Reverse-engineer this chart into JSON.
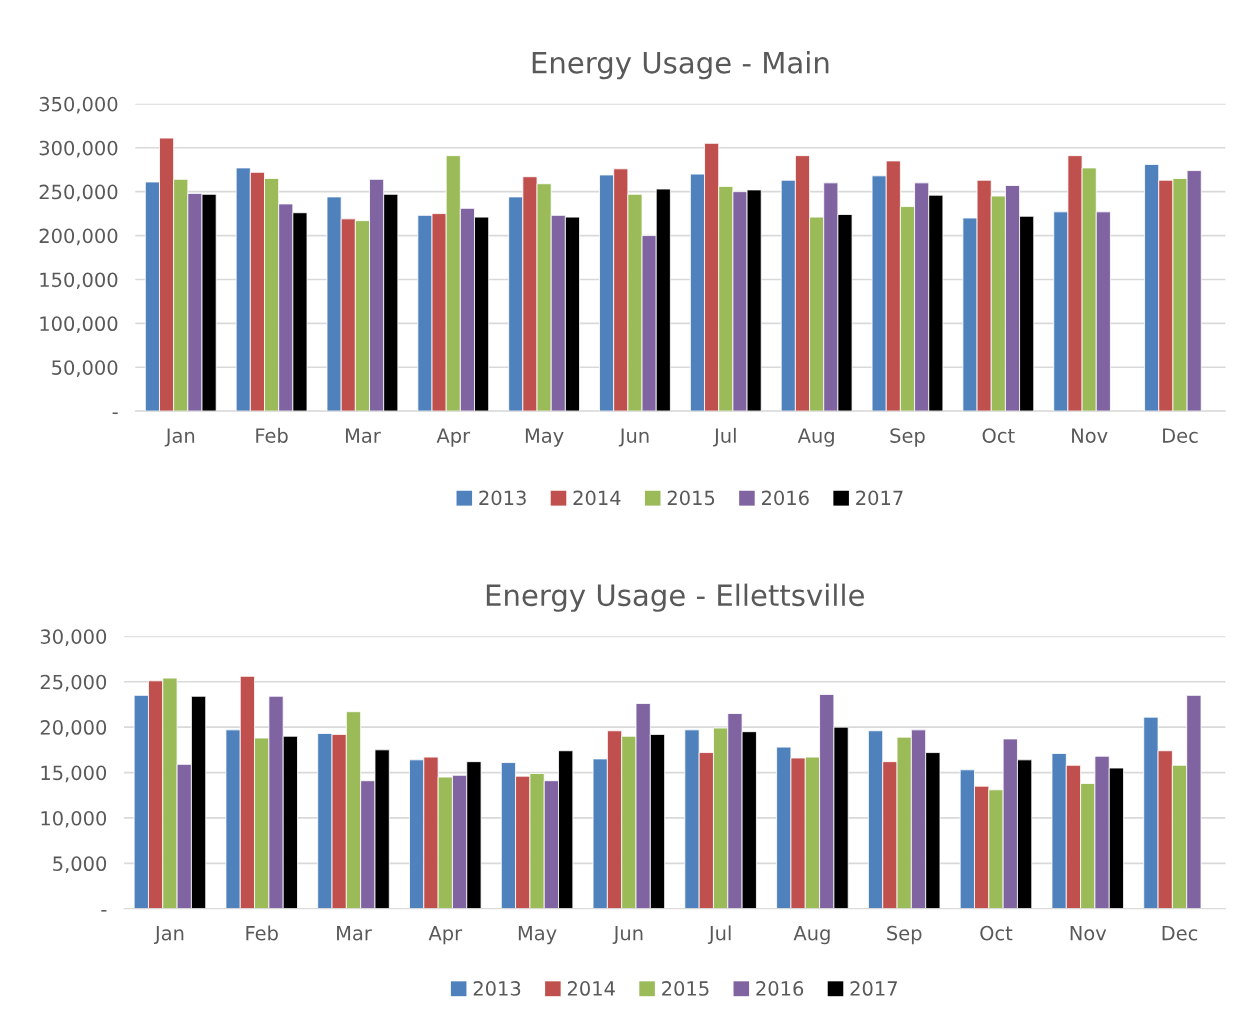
{
  "chart_data": [
    {
      "type": "bar",
      "title": "Energy Usage - Main",
      "categories": [
        "Jan",
        "Feb",
        "Mar",
        "Apr",
        "May",
        "Jun",
        "Jul",
        "Aug",
        "Sep",
        "Oct",
        "Nov",
        "Dec"
      ],
      "series": [
        {
          "name": "2013",
          "color": "#4f81bd",
          "values": [
            261000,
            277000,
            244000,
            223000,
            244000,
            269000,
            270000,
            263000,
            268000,
            220000,
            227000,
            281000
          ]
        },
        {
          "name": "2014",
          "color": "#c0504d",
          "values": [
            311000,
            272000,
            219000,
            225000,
            267000,
            276000,
            305000,
            291000,
            285000,
            263000,
            291000,
            263000
          ]
        },
        {
          "name": "2015",
          "color": "#9bbb59",
          "values": [
            264000,
            265000,
            217000,
            291000,
            259000,
            247000,
            256000,
            221000,
            233000,
            245000,
            277000,
            265000
          ]
        },
        {
          "name": "2016",
          "color": "#8064a2",
          "values": [
            248000,
            236000,
            264000,
            231000,
            223000,
            200000,
            250000,
            260000,
            260000,
            257000,
            227000,
            274000
          ]
        },
        {
          "name": "2017",
          "color": "#000000",
          "values": [
            247000,
            226000,
            247000,
            221000,
            221000,
            253000,
            252000,
            224000,
            246000,
            222000,
            null,
            null
          ]
        }
      ],
      "ylim": [
        0,
        350000
      ],
      "yticks": [
        {
          "value": 0,
          "label": "-"
        },
        {
          "value": 50000,
          "label": "50,000"
        },
        {
          "value": 100000,
          "label": "100,000"
        },
        {
          "value": 150000,
          "label": "150,000"
        },
        {
          "value": 200000,
          "label": "200,000"
        },
        {
          "value": 250000,
          "label": "250,000"
        },
        {
          "value": 300000,
          "label": "300,000"
        },
        {
          "value": 350000,
          "label": "350,000"
        }
      ],
      "grid": "y",
      "legend": "bottom"
    },
    {
      "type": "bar",
      "title": "Energy Usage - Ellettsville",
      "categories": [
        "Jan",
        "Feb",
        "Mar",
        "Apr",
        "May",
        "Jun",
        "Jul",
        "Aug",
        "Sep",
        "Oct",
        "Nov",
        "Dec"
      ],
      "series": [
        {
          "name": "2013",
          "color": "#4f81bd",
          "values": [
            23500,
            19700,
            19300,
            16400,
            16100,
            16500,
            19700,
            17800,
            19600,
            15300,
            17100,
            21100
          ]
        },
        {
          "name": "2014",
          "color": "#c0504d",
          "values": [
            25100,
            25600,
            19200,
            16700,
            14600,
            19600,
            17200,
            16600,
            16200,
            13500,
            15800,
            17400
          ]
        },
        {
          "name": "2015",
          "color": "#9bbb59",
          "values": [
            25400,
            18800,
            21700,
            14500,
            14900,
            19000,
            19900,
            16700,
            18900,
            13100,
            13800,
            15800
          ]
        },
        {
          "name": "2016",
          "color": "#8064a2",
          "values": [
            15900,
            23400,
            14100,
            14700,
            14100,
            22600,
            21500,
            23600,
            19700,
            18700,
            16800,
            23500
          ]
        },
        {
          "name": "2017",
          "color": "#000000",
          "values": [
            23400,
            19000,
            17500,
            16200,
            17400,
            19200,
            19500,
            20000,
            17200,
            16400,
            15500,
            null
          ]
        }
      ],
      "ylim": [
        0,
        30000
      ],
      "yticks": [
        {
          "value": 0,
          "label": "-"
        },
        {
          "value": 5000,
          "label": "5,000"
        },
        {
          "value": 10000,
          "label": "10,000"
        },
        {
          "value": 15000,
          "label": "15,000"
        },
        {
          "value": 20000,
          "label": "20,000"
        },
        {
          "value": 25000,
          "label": "25,000"
        },
        {
          "value": 30000,
          "label": "30,000"
        }
      ],
      "grid": "y",
      "legend": "bottom"
    }
  ]
}
